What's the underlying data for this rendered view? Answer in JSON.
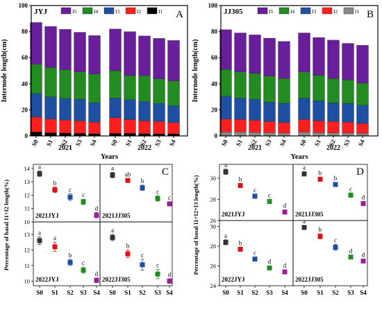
{
  "chart_data": [
    {
      "id": "A",
      "type": "bar",
      "stacked": true,
      "panel_label": "A",
      "corner_title": "JYJ",
      "ylabel": "Internode length(cm)",
      "xlabel": "Years",
      "ylim": [
        0,
        100
      ],
      "yticks": [
        0,
        20,
        40,
        60,
        80,
        100
      ],
      "years": [
        "2021",
        "2022"
      ],
      "categories": [
        "S0",
        "S1",
        "S2",
        "S3",
        "S4",
        "S0",
        "S1",
        "S2",
        "S3",
        "S4"
      ],
      "legend": [
        "I5",
        "I4",
        "I3",
        "I2",
        "I1"
      ],
      "series": [
        {
          "name": "I1",
          "color": "#000000",
          "values": [
            3.0,
            2.4,
            2.2,
            2.0,
            1.8,
            2.0,
            2.0,
            1.8,
            1.6,
            1.6
          ]
        },
        {
          "name": "I2",
          "color": "#ff1f1f",
          "values": [
            11.5,
            10.5,
            10.0,
            9.5,
            8.7,
            12.0,
            10.5,
            9.7,
            9.4,
            8.6
          ]
        },
        {
          "name": "I3",
          "color": "#1f4fa0",
          "values": [
            18.0,
            17.0,
            16.5,
            16.5,
            15.0,
            15.0,
            15.3,
            14.9,
            13.8,
            13.0
          ]
        },
        {
          "name": "I4",
          "color": "#228b22",
          "values": [
            22.5,
            22.6,
            22.0,
            21.0,
            22.0,
            21.0,
            18.5,
            19.8,
            19.0,
            19.0
          ]
        },
        {
          "name": "I5",
          "color": "#6a1f9a",
          "values": [
            32.0,
            31.5,
            31.0,
            30.5,
            29.5,
            32.0,
            33.7,
            30.5,
            31.0,
            31.0
          ]
        }
      ]
    },
    {
      "id": "B",
      "type": "bar",
      "stacked": true,
      "panel_label": "B",
      "corner_title": "JJ305",
      "ylabel": "Internode length(cm)",
      "xlabel": "Years",
      "ylim": [
        0,
        100
      ],
      "yticks": [
        0,
        20,
        40,
        60,
        80,
        100
      ],
      "years": [
        "2021",
        "2022"
      ],
      "categories": [
        "S0",
        "S1",
        "S2",
        "S3",
        "S4",
        "S0",
        "S1",
        "S2",
        "S3",
        "S4"
      ],
      "legend": [
        "I5",
        "I4",
        "I3",
        "I2",
        "I1"
      ],
      "series": [
        {
          "name": "I1",
          "color": "#888888",
          "values": [
            3.0,
            3.0,
            2.7,
            2.5,
            2.2,
            3.0,
            2.5,
            2.4,
            2.2,
            2.0
          ]
        },
        {
          "name": "I2",
          "color": "#ff1f1f",
          "values": [
            10.0,
            9.7,
            9.3,
            8.5,
            8.0,
            9.5,
            9.0,
            8.6,
            8.3,
            7.5
          ]
        },
        {
          "name": "I3",
          "color": "#1f4fa0",
          "values": [
            17.5,
            16.3,
            16.0,
            15.0,
            14.8,
            16.5,
            15.5,
            14.5,
            14.5,
            14.0
          ]
        },
        {
          "name": "I4",
          "color": "#228b22",
          "values": [
            20.5,
            20.0,
            20.0,
            20.0,
            19.0,
            20.0,
            19.5,
            18.5,
            18.0,
            17.0
          ]
        },
        {
          "name": "I5",
          "color": "#6a1f9a",
          "values": [
            30.5,
            30.0,
            29.5,
            29.0,
            28.5,
            30.0,
            29.0,
            29.5,
            28.0,
            29.0
          ]
        }
      ]
    },
    {
      "id": "C",
      "type": "scatter",
      "panel_label": "C",
      "ylabel": "Percentage of basal I1+I2 length(%)",
      "xcategories": [
        "S0",
        "S1",
        "S2",
        "S3",
        "S4"
      ],
      "colors": [
        "#333333",
        "#dd1111",
        "#1f4fa0",
        "#228b22",
        "#9b1f9b"
      ],
      "subplots": [
        {
          "title": "2021JYJ",
          "ylim": [
            10,
            14.3
          ],
          "yticks": [
            10,
            11,
            12,
            13,
            14
          ],
          "values": [
            13.6,
            12.4,
            11.85,
            11.5,
            10.5
          ],
          "errors": [
            0.2,
            0.2,
            0.25,
            0.2,
            0.2
          ],
          "letters": [
            "a",
            "b",
            "c",
            "c",
            "d"
          ]
        },
        {
          "title": "2021JJ305",
          "ylim": [
            10,
            14.3
          ],
          "yticks": [],
          "values": [
            13.5,
            13.1,
            12.55,
            11.75,
            11.35
          ],
          "errors": [
            0.2,
            0.15,
            0.2,
            0.2,
            0.15
          ],
          "letters": [
            "a",
            "ab",
            "b",
            "c",
            "c"
          ]
        },
        {
          "title": "2022JYJ",
          "ylim": [
            9.7,
            13.8
          ],
          "yticks": [
            10,
            11,
            12,
            13
          ],
          "values": [
            12.6,
            12.2,
            11.2,
            10.7,
            10.05
          ],
          "errors": [
            0.25,
            0.3,
            0.2,
            0.2,
            0.15
          ],
          "letters": [
            "a",
            "a",
            "b",
            "c",
            "d"
          ]
        },
        {
          "title": "2022JJ305",
          "ylim": [
            9.7,
            13.8
          ],
          "yticks": [],
          "values": [
            12.8,
            11.75,
            11.05,
            10.45,
            10.0
          ],
          "errors": [
            0.2,
            0.25,
            0.35,
            0.3,
            0.15
          ],
          "letters": [
            "a",
            "b",
            "c",
            "c",
            "d"
          ]
        }
      ]
    },
    {
      "id": "D",
      "type": "scatter",
      "panel_label": "D",
      "ylabel": "Percentage of basal I1+I2+I3 length(%)",
      "xcategories": [
        "S0",
        "S1",
        "S2",
        "S3",
        "S4"
      ],
      "colors": [
        "#333333",
        "#dd1111",
        "#1f4fa0",
        "#228b22",
        "#9b1f9b"
      ],
      "subplots": [
        {
          "title": "2021JYJ",
          "ylim": [
            26,
            31.3
          ],
          "yticks": [
            26,
            28,
            30
          ],
          "values": [
            30.6,
            29.3,
            28.3,
            27.8,
            26.8
          ],
          "errors": [
            0.25,
            0.2,
            0.2,
            0.2,
            0.2
          ],
          "letters": [
            "a",
            "b",
            "c",
            "c",
            "d"
          ]
        },
        {
          "title": "2021JJ305",
          "ylim": [
            26,
            31.3
          ],
          "yticks": [],
          "values": [
            30.4,
            29.9,
            29.4,
            28.4,
            27.6
          ],
          "errors": [
            0.2,
            0.2,
            0.2,
            0.2,
            0.2
          ],
          "letters": [
            "a",
            "b",
            "b",
            "c",
            "d"
          ]
        },
        {
          "title": "2022JYJ",
          "ylim": [
            24,
            30.6
          ],
          "yticks": [
            24,
            26,
            28,
            30
          ],
          "values": [
            28.4,
            27.7,
            26.7,
            25.8,
            25.4
          ],
          "errors": [
            0.25,
            0.2,
            0.2,
            0.2,
            0.2
          ],
          "letters": [
            "a",
            "b",
            "c",
            "d",
            "d"
          ]
        },
        {
          "title": "2022JJ305",
          "ylim": [
            24,
            30.6
          ],
          "yticks": [],
          "values": [
            29.9,
            29.0,
            27.9,
            26.9,
            26.5
          ],
          "errors": [
            0.2,
            0.25,
            0.3,
            0.2,
            0.2
          ],
          "letters": [
            "a",
            "b",
            "c",
            "d",
            "d"
          ]
        }
      ]
    }
  ]
}
